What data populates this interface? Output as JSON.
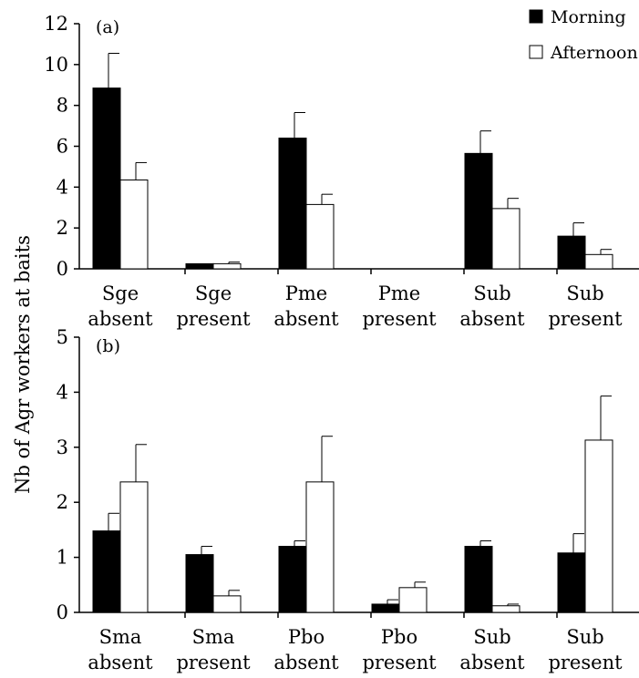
{
  "ylabel": "Nb of Agr workers at baits",
  "legend": {
    "entries": [
      {
        "label": "Morning",
        "color": "#000000"
      },
      {
        "label": "Afternoon",
        "color": "#ffffff"
      }
    ],
    "placement": "top-right"
  },
  "chart_data": [
    {
      "type": "bar",
      "panel": "(a)",
      "ylim": [
        0,
        12
      ],
      "yticks": [
        "0",
        "2",
        "4",
        "6",
        "8",
        "10",
        "12"
      ],
      "categories": [
        [
          "Sge",
          "absent"
        ],
        [
          "Sge",
          "present"
        ],
        [
          "Pme",
          "absent"
        ],
        [
          "Pme",
          "present"
        ],
        [
          "Sub",
          "absent"
        ],
        [
          "Sub",
          "present"
        ]
      ],
      "series": [
        {
          "name": "Morning",
          "color": "#000000",
          "values": [
            8.85,
            0.25,
            6.4,
            0.0,
            5.65,
            1.6
          ],
          "errors": [
            1.7,
            0.0,
            1.25,
            0.0,
            1.1,
            0.65
          ]
        },
        {
          "name": "Afternoon",
          "color": "#ffffff",
          "values": [
            4.35,
            0.25,
            3.15,
            0.0,
            2.95,
            0.7
          ],
          "errors": [
            0.85,
            0.08,
            0.5,
            0.0,
            0.5,
            0.25
          ]
        }
      ]
    },
    {
      "type": "bar",
      "panel": "(b)",
      "ylim": [
        0,
        5
      ],
      "yticks": [
        "0",
        "1",
        "2",
        "3",
        "4",
        "5"
      ],
      "categories": [
        [
          "Sma",
          "absent"
        ],
        [
          "Sma",
          "present"
        ],
        [
          "Pbo",
          "absent"
        ],
        [
          "Pbo",
          "present"
        ],
        [
          "Sub",
          "absent"
        ],
        [
          "Sub",
          "present"
        ]
      ],
      "series": [
        {
          "name": "Morning",
          "color": "#000000",
          "values": [
            1.48,
            1.05,
            1.2,
            0.15,
            1.2,
            1.08
          ],
          "errors": [
            0.32,
            0.15,
            0.1,
            0.08,
            0.1,
            0.35
          ]
        },
        {
          "name": "Afternoon",
          "color": "#ffffff",
          "values": [
            2.37,
            0.3,
            2.37,
            0.45,
            0.12,
            3.13
          ],
          "errors": [
            0.68,
            0.1,
            0.83,
            0.1,
            0.03,
            0.8
          ]
        }
      ]
    }
  ]
}
